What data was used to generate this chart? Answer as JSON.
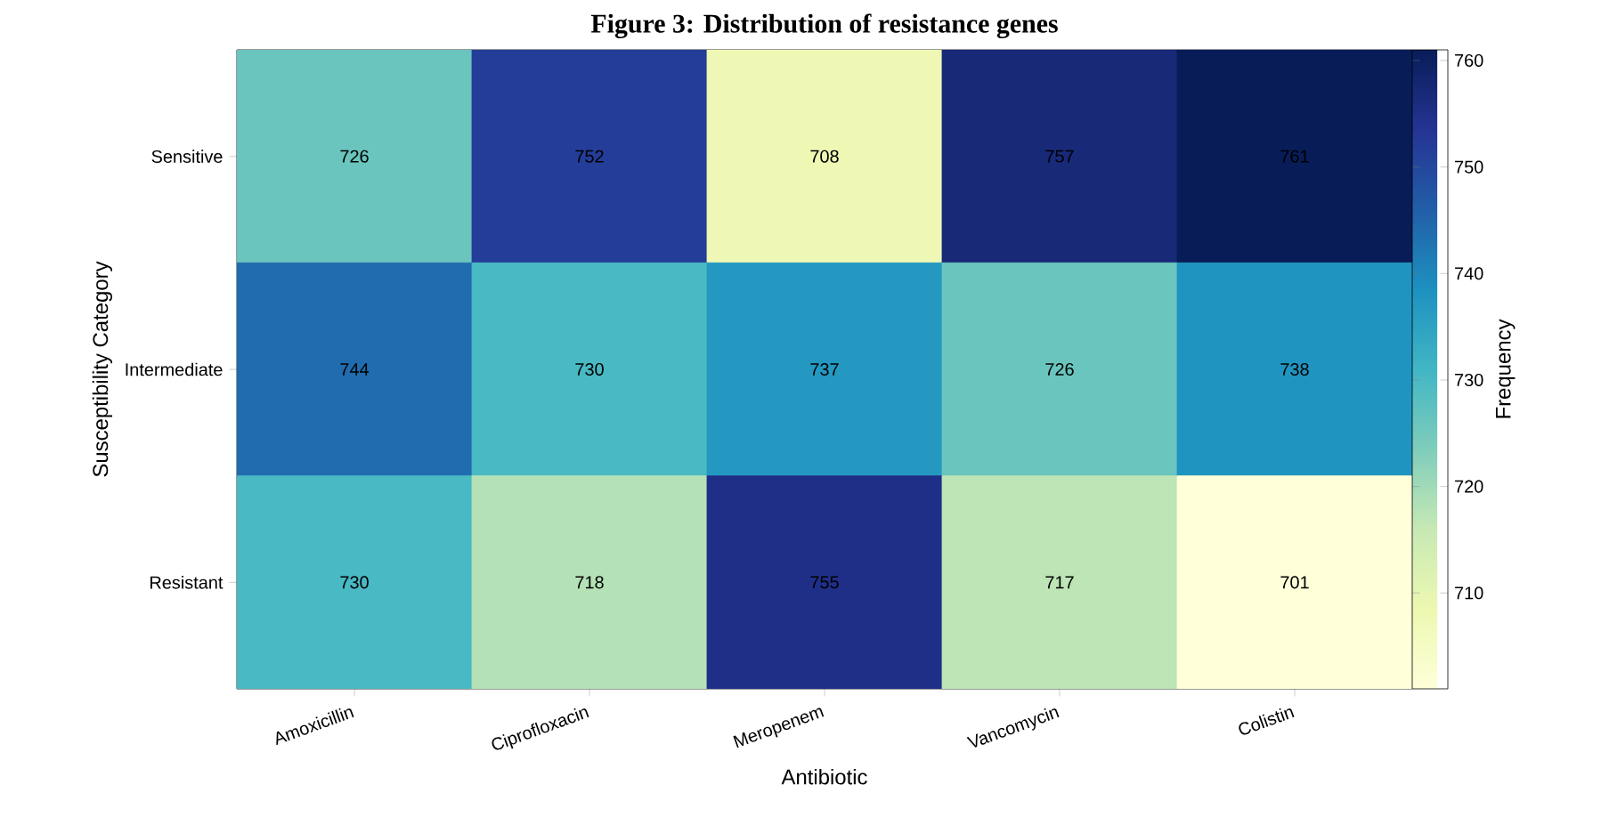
{
  "chart_data": {
    "type": "heatmap",
    "title": "Figure 3: Distribution of resistance genes",
    "xlabel": "Antibiotic",
    "ylabel": "Susceptibility Category",
    "clabel": "Frequency",
    "categories": [
      "Amoxicillin",
      "Ciprofloxacin",
      "Meropenem",
      "Vancomycin",
      "Colistin"
    ],
    "y_categories": [
      "Sensitive",
      "Intermediate",
      "Resistant"
    ],
    "cells": [
      [
        726,
        752,
        708,
        757,
        761
      ],
      [
        744,
        730,
        737,
        726,
        738
      ],
      [
        730,
        718,
        755,
        717,
        701
      ]
    ],
    "clim": [
      701,
      761
    ],
    "cticks": [
      710,
      720,
      730,
      740,
      750,
      760
    ],
    "data_labels": true
  }
}
